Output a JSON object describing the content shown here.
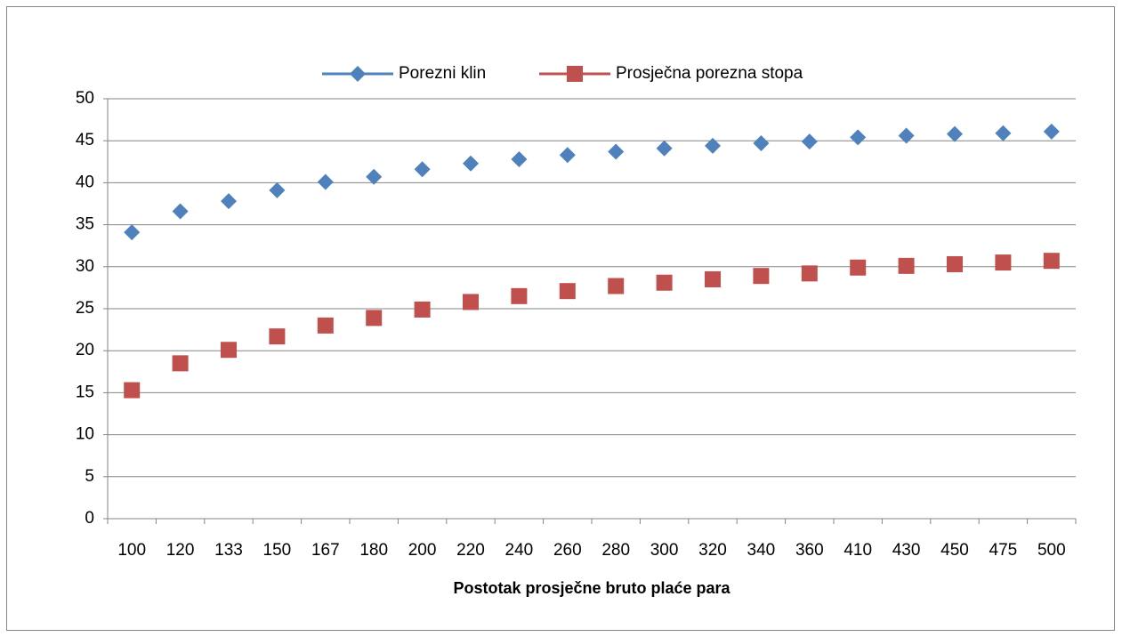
{
  "chart_data": {
    "type": "scatter-category",
    "x_label": "Postotak prosječne bruto plaće para",
    "categories": [
      "100",
      "120",
      "133",
      "150",
      "167",
      "180",
      "200",
      "220",
      "240",
      "260",
      "280",
      "300",
      "320",
      "340",
      "360",
      "410",
      "430",
      "450",
      "475",
      "500"
    ],
    "series": [
      {
        "name": "Porezni klin",
        "color": "#4f81bd",
        "marker": "diamond",
        "values": [
          34.1,
          36.6,
          37.8,
          39.1,
          40.1,
          40.7,
          41.6,
          42.3,
          42.8,
          43.3,
          43.7,
          44.1,
          44.4,
          44.7,
          44.9,
          45.4,
          45.6,
          45.8,
          45.9,
          46.1
        ]
      },
      {
        "name": "Prosječna porezna stopa",
        "color": "#c0504d",
        "marker": "square",
        "values": [
          15.3,
          18.5,
          20.1,
          21.7,
          23.0,
          23.9,
          24.9,
          25.8,
          26.5,
          27.1,
          27.7,
          28.1,
          28.5,
          28.9,
          29.2,
          29.9,
          30.1,
          30.3,
          30.5,
          30.7
        ]
      }
    ],
    "ylim": [
      0,
      50
    ],
    "yticks": [
      0,
      5,
      10,
      15,
      20,
      25,
      30,
      35,
      40,
      45,
      50
    ],
    "grid": true,
    "legend": "top"
  }
}
